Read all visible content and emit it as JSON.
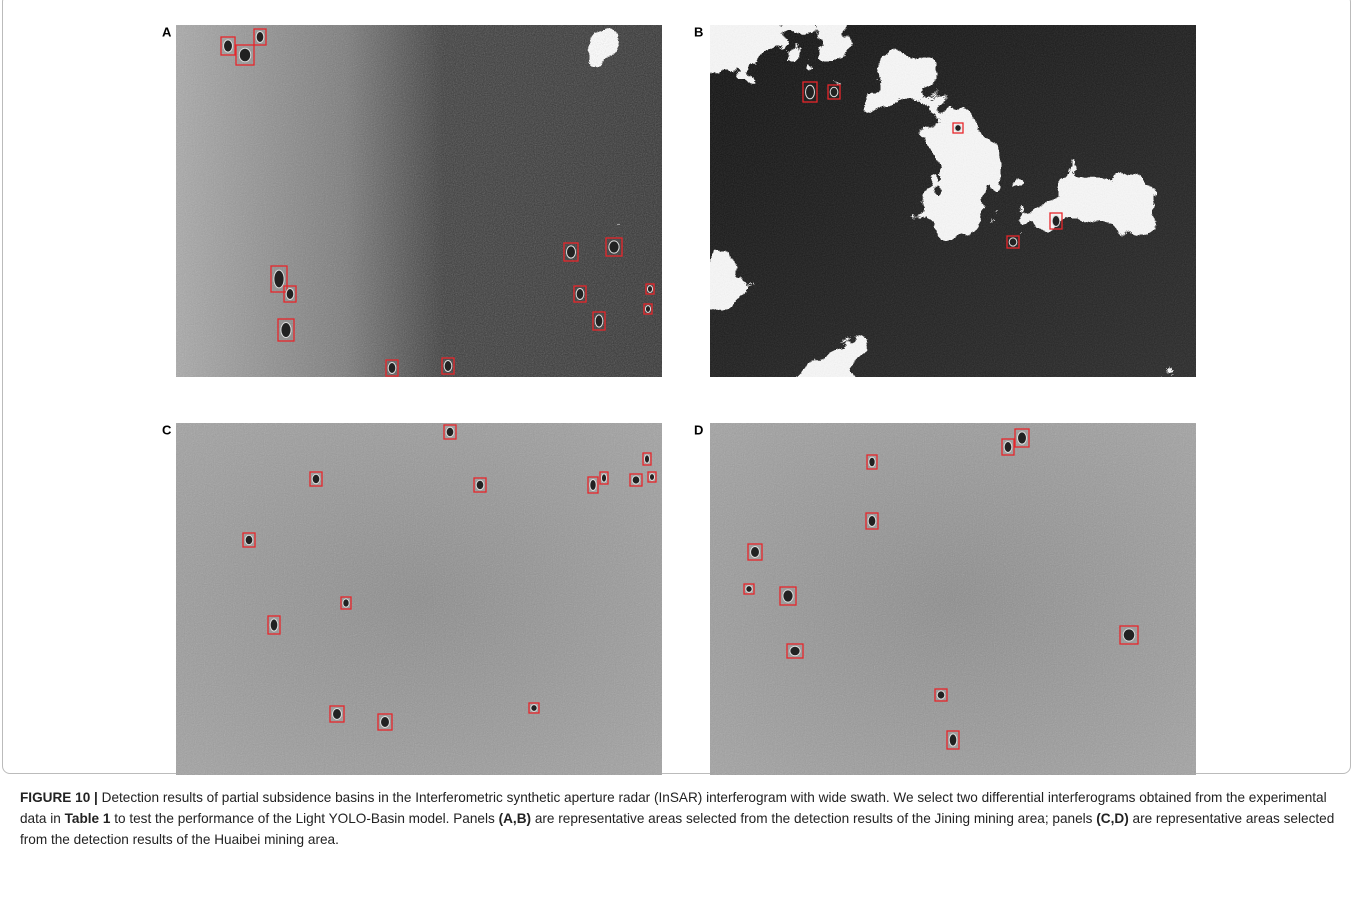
{
  "panels": [
    {
      "label": "A"
    },
    {
      "label": "B"
    },
    {
      "label": "C"
    },
    {
      "label": "D"
    }
  ],
  "caption": {
    "segments": [
      {
        "text": "FIGURE 10 |",
        "bold": true
      },
      {
        "text": " Detection results of partial subsidence basins in the Interferometric synthetic aperture radar (InSAR) interferogram with wide swath. We select two differential interferograms obtained from the experimental data in ",
        "bold": false
      },
      {
        "text": "Table 1",
        "bold": true
      },
      {
        "text": " to test the performance of the Light YOLO-Basin model. Panels ",
        "bold": false
      },
      {
        "text": "(A,B)",
        "bold": true
      },
      {
        "text": " are representative areas selected from the detection results of the Jining mining area; panels ",
        "bold": false
      },
      {
        "text": "(C,D)",
        "bold": true
      },
      {
        "text": " are representative areas selected from the detection results of the Huaibei mining area.",
        "bold": false
      }
    ]
  }
}
